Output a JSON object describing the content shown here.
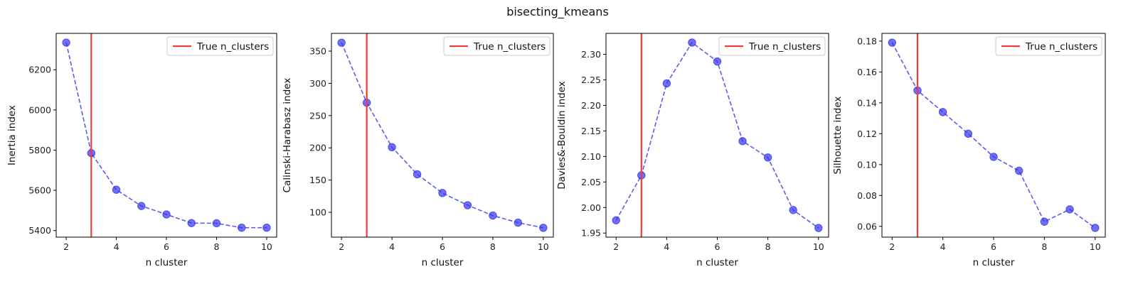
{
  "figure": {
    "title": "bisecting_kmeans"
  },
  "colors": {
    "series": "#4a4af0",
    "marker": "#3333ee",
    "true_line": "#f23c3c",
    "axis": "#000000",
    "legend_border": "#cccccc"
  },
  "chart_data": [
    {
      "type": "line",
      "xlabel": "n cluster",
      "ylabel": "Inertia index",
      "x": [
        2,
        3,
        4,
        5,
        6,
        7,
        8,
        9,
        10
      ],
      "y": [
        6335,
        5785,
        5603,
        5522,
        5480,
        5437,
        5436,
        5414,
        5414
      ],
      "xlim": [
        1.6,
        10.4
      ],
      "ylim": [
        5367,
        6381
      ],
      "xticks": [
        2,
        4,
        6,
        8,
        10
      ],
      "yticks": [
        5400,
        5600,
        5800,
        6000,
        6200
      ],
      "tick_format": "0",
      "true_n_clusters": 3,
      "legend": {
        "label": "True n_clusters",
        "position": "top-right"
      },
      "grid": false
    },
    {
      "type": "line",
      "xlabel": "n cluster",
      "ylabel": "Calinski-Harabasz index",
      "x": [
        2,
        3,
        4,
        5,
        6,
        7,
        8,
        9,
        10
      ],
      "y": [
        363,
        270,
        201,
        159,
        130,
        111,
        95,
        84,
        76
      ],
      "xlim": [
        1.6,
        10.4
      ],
      "ylim": [
        61.5,
        377.5
      ],
      "xticks": [
        2,
        4,
        6,
        8,
        10
      ],
      "yticks": [
        100,
        150,
        200,
        250,
        300,
        350
      ],
      "tick_format": "0",
      "true_n_clusters": 3,
      "legend": {
        "label": "True n_clusters",
        "position": "top-right"
      },
      "grid": false
    },
    {
      "type": "line",
      "xlabel": "n cluster",
      "ylabel": "Davies&-Bouldin index",
      "x": [
        2,
        3,
        4,
        5,
        6,
        7,
        8,
        9,
        10
      ],
      "y": [
        1.975,
        2.063,
        2.243,
        2.323,
        2.286,
        2.13,
        2.098,
        1.995,
        1.96
      ],
      "xlim": [
        1.6,
        10.4
      ],
      "ylim": [
        1.942,
        2.341
      ],
      "xticks": [
        2,
        4,
        6,
        8,
        10
      ],
      "yticks": [
        1.95,
        2.0,
        2.05,
        2.1,
        2.15,
        2.2,
        2.25,
        2.3
      ],
      "tick_format": "2",
      "true_n_clusters": 3,
      "legend": {
        "label": "True n_clusters",
        "position": "top-right"
      },
      "grid": false
    },
    {
      "type": "line",
      "xlabel": "n cluster",
      "ylabel": "Silhouette index",
      "x": [
        2,
        3,
        4,
        5,
        6,
        7,
        8,
        9,
        10
      ],
      "y": [
        0.179,
        0.148,
        0.134,
        0.12,
        0.105,
        0.096,
        0.063,
        0.071,
        0.059
      ],
      "xlim": [
        1.6,
        10.4
      ],
      "ylim": [
        0.053,
        0.185
      ],
      "xticks": [
        2,
        4,
        6,
        8,
        10
      ],
      "yticks": [
        0.06,
        0.08,
        0.1,
        0.12,
        0.14,
        0.16,
        0.18
      ],
      "tick_format": "2",
      "true_n_clusters": 3,
      "legend": {
        "label": "True n_clusters",
        "position": "top-right"
      },
      "grid": false
    }
  ]
}
